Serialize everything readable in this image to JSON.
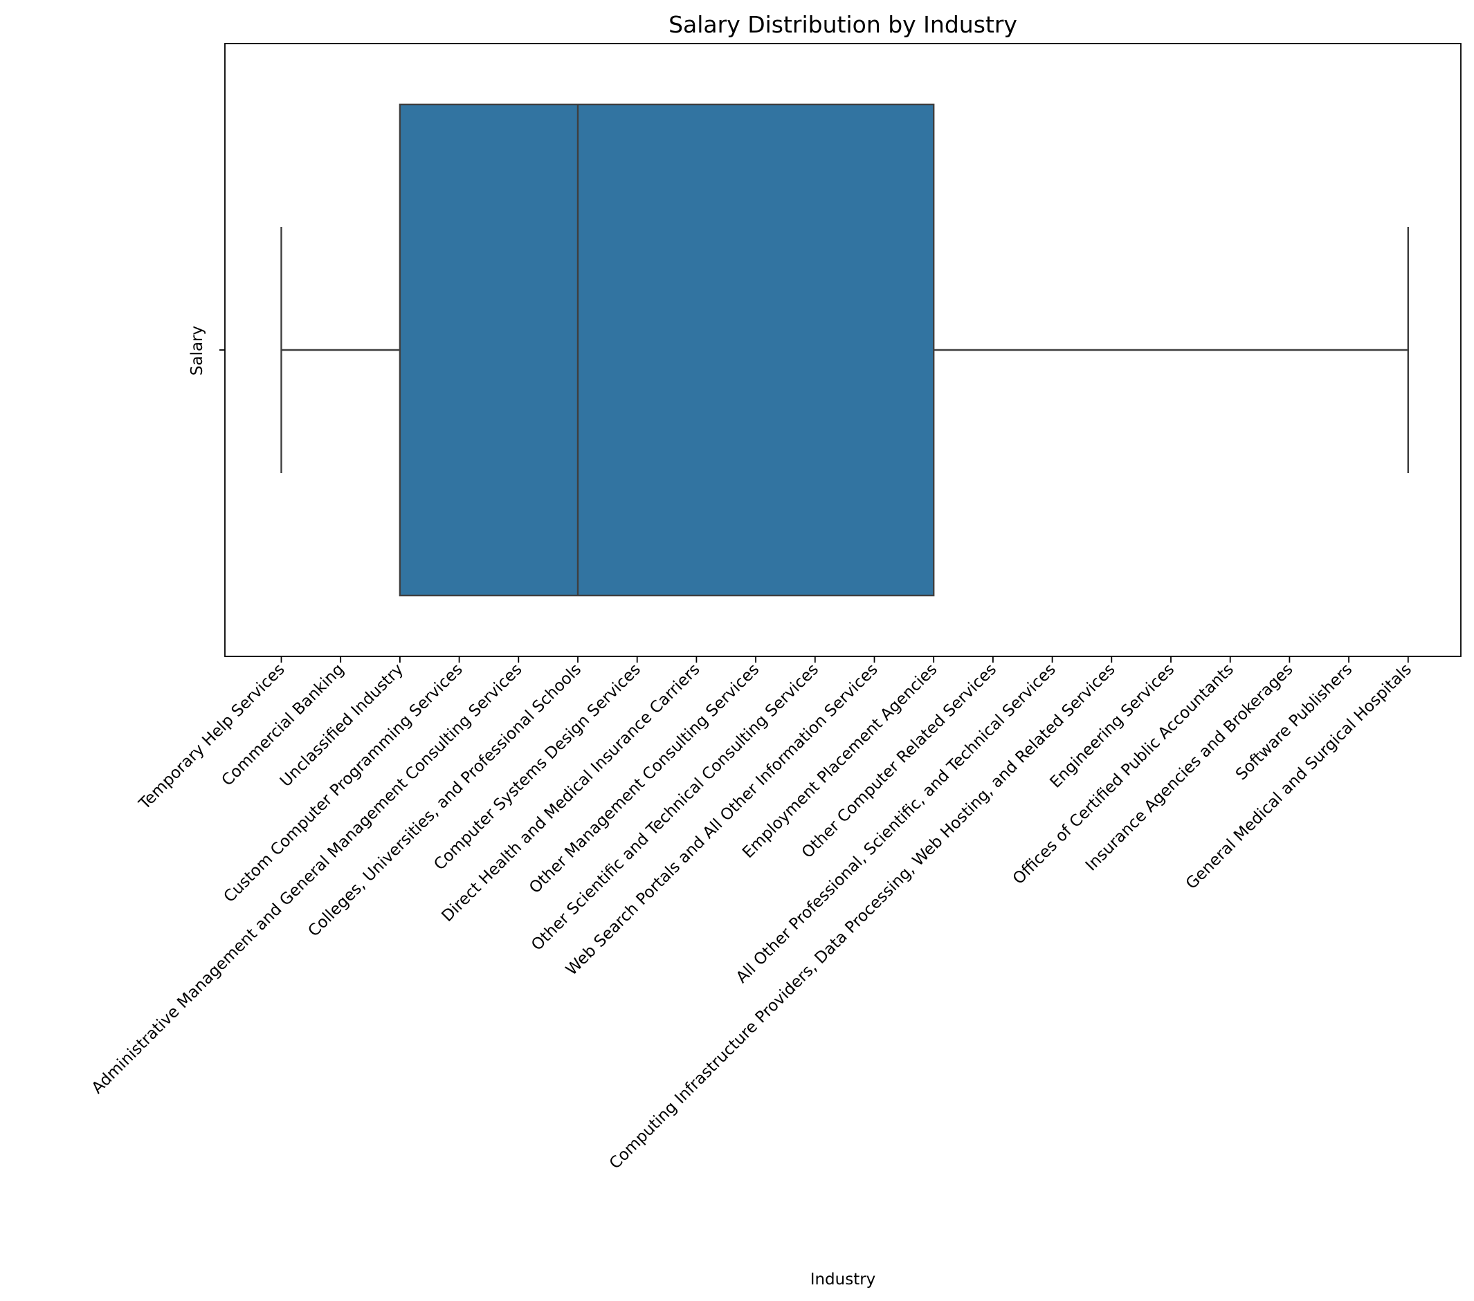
{
  "chart_data": {
    "type": "boxplot",
    "title": "Salary Distribution by Industry",
    "xlabel": "Industry",
    "ylabel": "Salary",
    "orientation": "horizontal",
    "categories": [
      "Temporary Help Services",
      "Commercial Banking",
      "Unclassified Industry",
      "Custom Computer Programming Services",
      "Administrative Management and General Management Consulting Services",
      "Colleges, Universities, and Professional Schools",
      "Computer Systems Design Services",
      "Direct Health and Medical Insurance Carriers",
      "Other Management Consulting Services",
      "Other Scientific and Technical Consulting Services",
      "Web Search Portals and All Other Information Services",
      "Employment Placement Agencies",
      "Other Computer Related Services",
      "All Other Professional, Scientific, and Technical Services",
      "Computing Infrastructure Providers, Data Processing, Web Hosting, and Related Services",
      "Engineering Services",
      "Offices of Certified Public Accountants",
      "Insurance Agencies and Brokerages",
      "Software Publishers",
      "General Medical and Surgical Hospitals"
    ],
    "box": {
      "whisker_low": 0,
      "q1": 2,
      "median": 5,
      "q3": 11,
      "whisker_high": 19
    },
    "y_ticks": [
      ""
    ],
    "colors": {
      "box_fill": "#3274a1",
      "line": "#3f3f3f",
      "axis": "#000000"
    },
    "grid": false,
    "legend": "none"
  }
}
